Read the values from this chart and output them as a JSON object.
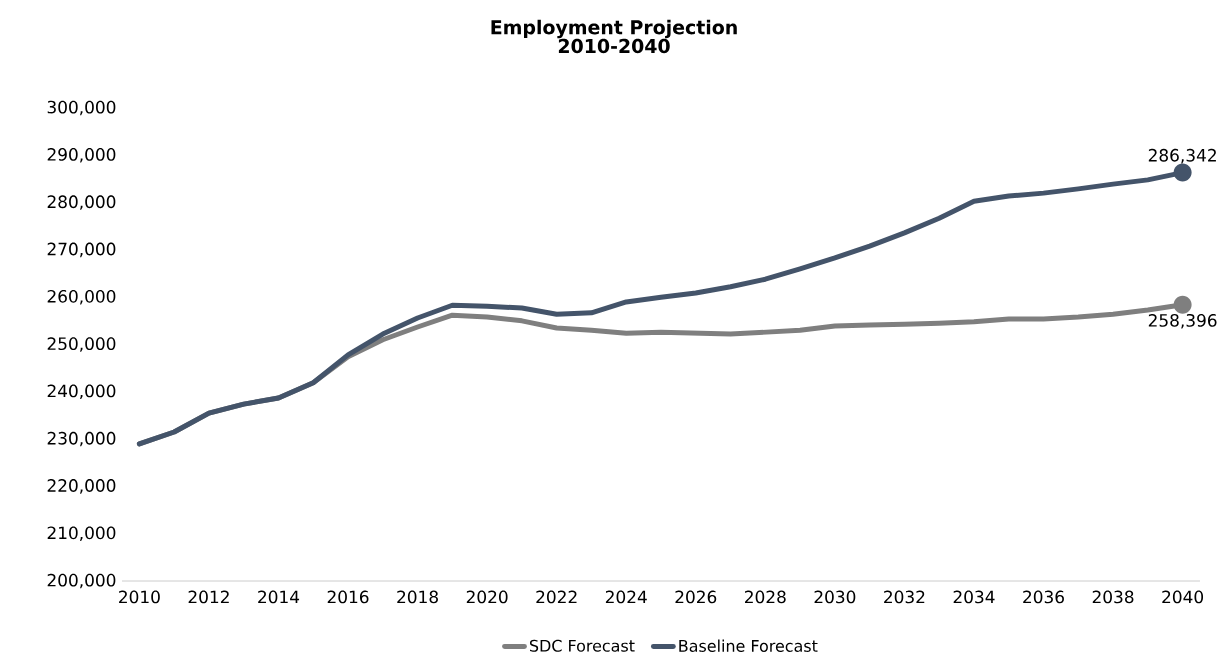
{
  "chart_data": {
    "type": "line",
    "title": "Employment Projection",
    "subtitle": "2010-2040",
    "x": [
      2010,
      2011,
      2012,
      2013,
      2014,
      2015,
      2016,
      2017,
      2018,
      2019,
      2020,
      2021,
      2022,
      2023,
      2024,
      2025,
      2026,
      2027,
      2028,
      2029,
      2030,
      2031,
      2032,
      2033,
      2034,
      2035,
      2036,
      2037,
      2038,
      2039,
      2040
    ],
    "series": [
      {
        "name": "SDC Forecast",
        "color": "#7f7f7f",
        "values": [
          229000,
          231500,
          235500,
          237400,
          238700,
          241900,
          247400,
          251000,
          253700,
          256200,
          255800,
          255000,
          253500,
          253000,
          252400,
          252600,
          252400,
          252200,
          252600,
          253000,
          253900,
          254100,
          254300,
          254500,
          254800,
          255400,
          255400,
          255800,
          256400,
          257300,
          258396
        ],
        "value_labels": [
          null,
          null,
          null,
          null,
          null,
          null,
          null,
          null,
          null,
          null,
          null,
          null,
          null,
          null,
          null,
          null,
          null,
          null,
          null,
          null,
          null,
          null,
          null,
          null,
          null,
          null,
          null,
          null,
          null,
          null,
          "258,396"
        ]
      },
      {
        "name": "Baseline Forecast",
        "color": "#44546a",
        "values": [
          229000,
          231500,
          235500,
          237400,
          238700,
          241900,
          247800,
          252200,
          255600,
          258300,
          258100,
          257700,
          256400,
          256700,
          259000,
          260000,
          260900,
          262200,
          263800,
          266000,
          268300,
          270800,
          273600,
          276700,
          280300,
          281400,
          282000,
          282900,
          283900,
          284800,
          286342
        ],
        "value_labels": [
          null,
          null,
          null,
          null,
          null,
          null,
          null,
          null,
          null,
          null,
          null,
          null,
          null,
          null,
          null,
          null,
          null,
          null,
          null,
          null,
          null,
          null,
          null,
          null,
          null,
          null,
          null,
          null,
          null,
          null,
          "286,342"
        ]
      }
    ],
    "xlim": [
      2009.5,
      2040.5
    ],
    "xticks": [
      2010,
      2012,
      2014,
      2016,
      2018,
      2020,
      2022,
      2024,
      2026,
      2028,
      2030,
      2032,
      2034,
      2036,
      2038,
      2040
    ],
    "ylim": [
      200000,
      300000
    ],
    "yticks": [
      {
        "value": 200000,
        "label": "200,000"
      },
      {
        "value": 210000,
        "label": "210,000"
      },
      {
        "value": 220000,
        "label": "220,000"
      },
      {
        "value": 230000,
        "label": "230,000"
      },
      {
        "value": 240000,
        "label": "240,000"
      },
      {
        "value": 250000,
        "label": "250,000"
      },
      {
        "value": 260000,
        "label": "260,000"
      },
      {
        "value": 270000,
        "label": "270,000"
      },
      {
        "value": 280000,
        "label": "280,000"
      },
      {
        "value": 290000,
        "label": "290,000"
      },
      {
        "value": 300000,
        "label": "300,000"
      }
    ],
    "legend": "bottom",
    "grid": false,
    "line_style": "solid"
  }
}
